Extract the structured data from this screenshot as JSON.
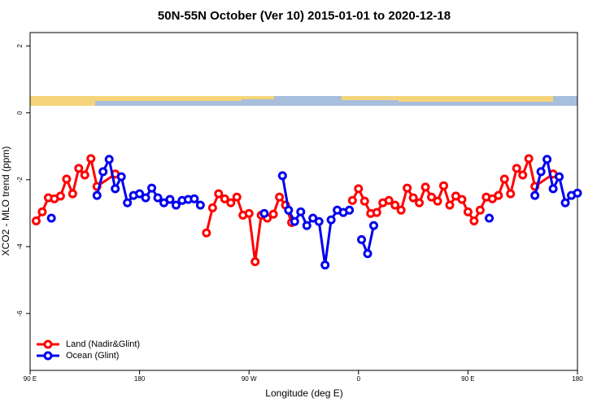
{
  "chart_data": {
    "type": "line",
    "title": "50N-55N October (Ver 10)   2015-01-01 to 2020-12-18",
    "x_label": "Longitude (deg E)",
    "y_label": "XCO2 - MLO trend (ppm)",
    "xlim": [
      90,
      540
    ],
    "xticks": [
      {
        "value": 90,
        "label": "90 E"
      },
      180,
      {
        "value": 270,
        "label": "90 W"
      },
      {
        "value": 360,
        "label": "0"
      },
      {
        "value": 450,
        "label": "90 E"
      },
      {
        "value": 540,
        "label": "180"
      }
    ],
    "ylim": [
      -7.7,
      2.4
    ],
    "yticks": [
      2,
      0,
      -2,
      -4,
      -6
    ],
    "legend": "bottomleft",
    "series": [
      {
        "name": "Land (Nadir&Glint)",
        "color": "#ff0000",
        "x": [
          95,
          100,
          105,
          110,
          115,
          120,
          125,
          130,
          135,
          140,
          145,
          160,
          165,
          235,
          240,
          245,
          250,
          255,
          260,
          265,
          270,
          275,
          280,
          285,
          290,
          295,
          300,
          305,
          310,
          355,
          360,
          365,
          370,
          375,
          380,
          385,
          390,
          395,
          400,
          405,
          410,
          415,
          420,
          425,
          430,
          435,
          440,
          445,
          450,
          455,
          460,
          465,
          470,
          475,
          480,
          485,
          490,
          495,
          500,
          505,
          520
        ],
        "values": [
          -3.23,
          -2.96,
          -2.54,
          -2.57,
          -2.49,
          -1.98,
          -2.42,
          -1.66,
          -1.86,
          -1.37,
          -2.2,
          -1.83,
          null,
          -3.59,
          -2.84,
          -2.42,
          -2.57,
          -2.69,
          -2.52,
          -3.06,
          -3.01,
          -4.45,
          -3.06,
          -3.15,
          -3.03,
          -2.52,
          -2.76,
          -3.28,
          null,
          -2.62,
          -2.27,
          -2.64,
          -3.01,
          -2.98,
          -2.69,
          -2.62,
          -2.76,
          -2.91,
          -2.25,
          -2.54,
          -2.69,
          -2.22,
          -2.52,
          -2.64,
          -2.18,
          -2.76,
          -2.49,
          -2.59,
          -2.96,
          -3.23,
          -2.91,
          -2.52,
          -2.57,
          -2.47,
          -1.98,
          -2.42,
          -1.66,
          -1.86,
          -1.37,
          -2.2,
          -1.83
        ]
      },
      {
        "name": "Ocean (Glint)",
        "color": "#0000ee",
        "x": [
          107.5,
          112.5,
          145,
          150,
          155,
          160,
          165,
          170,
          175,
          180,
          185,
          190,
          195,
          200,
          205,
          210,
          215,
          220,
          225,
          230,
          235,
          282.5,
          287.5,
          297.5,
          302.5,
          307.5,
          312.5,
          317.5,
          322.5,
          327.5,
          332.5,
          337.5,
          342.5,
          347.5,
          352.5,
          357.5,
          362.5,
          367.5,
          372.5,
          377.5,
          467.5,
          472.5,
          505,
          510,
          515,
          520,
          525,
          530,
          535,
          540
        ],
        "values": [
          -3.15,
          null,
          -2.47,
          -1.76,
          -1.39,
          -2.27,
          -1.91,
          -2.69,
          -2.47,
          -2.42,
          -2.54,
          -2.25,
          -2.54,
          -2.69,
          -2.59,
          -2.76,
          -2.62,
          -2.59,
          -2.57,
          -2.76,
          null,
          -3.01,
          null,
          -1.88,
          -2.91,
          -3.25,
          -2.96,
          -3.37,
          -3.15,
          -3.25,
          -4.55,
          -3.2,
          -2.91,
          -2.98,
          -2.91,
          null,
          -3.79,
          -4.21,
          -3.37,
          null,
          -3.15,
          null,
          -2.47,
          -1.76,
          -1.39,
          -2.27,
          -1.91,
          -2.69,
          -2.47,
          -2.4
        ]
      }
    ]
  }
}
